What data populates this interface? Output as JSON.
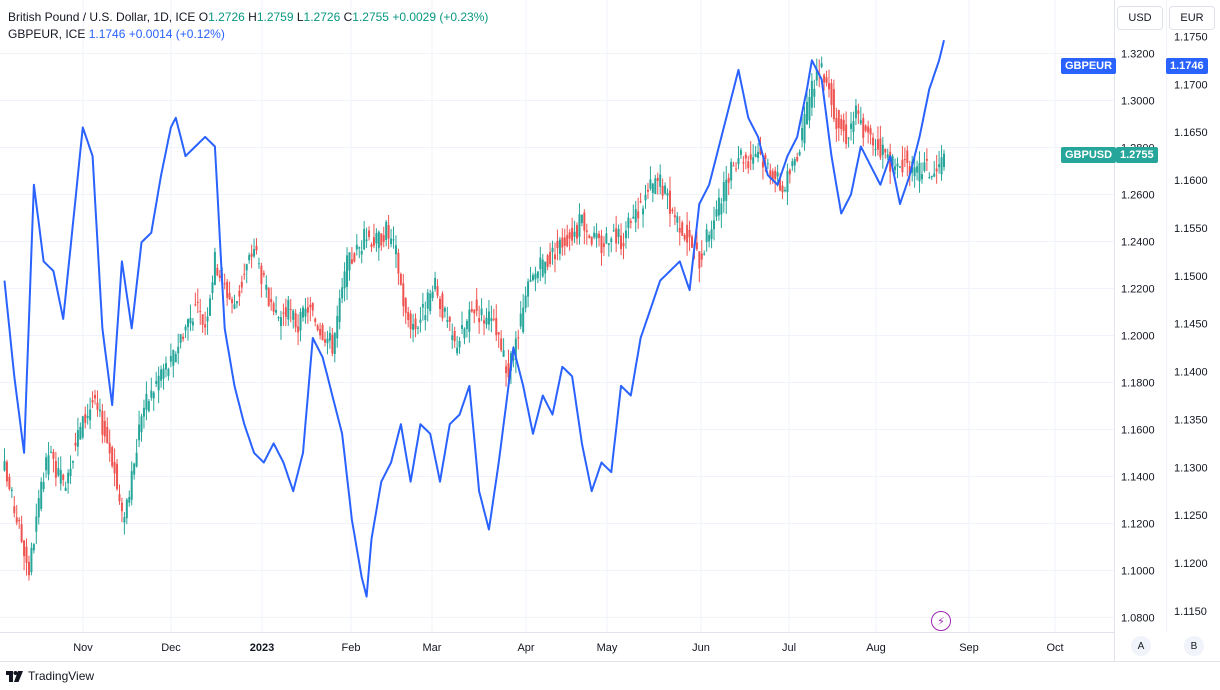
{
  "legend": {
    "main_title": "British Pound / U.S. Dollar, 1D, ICE",
    "o_label": "O",
    "o_value": "1.2726",
    "h_label": "H",
    "h_value": "1.2759",
    "l_label": "L",
    "l_value": "1.2726",
    "c_label": "C",
    "c_value": "1.2755",
    "change": "+0.0029 (+0.23%)",
    "compare_title": "GBPEUR, ICE",
    "compare_value": "1.1746",
    "compare_change": "+0.0014 (+0.12%)"
  },
  "buttons": {
    "usd": "USD",
    "eur": "EUR",
    "scale_a": "A",
    "scale_b": "B"
  },
  "badges": {
    "gbpeur_name": "GBPEUR",
    "gbpeur_value": "1.1746",
    "gbpusd_name": "GBPUSD",
    "gbpusd_value": "1.2755"
  },
  "footer": {
    "brand": "TradingView"
  },
  "colors": {
    "up": "#26a69a",
    "down": "#ef5350",
    "line": "#2962ff",
    "grid": "#f0f3fa"
  },
  "chart_data": {
    "type": "line",
    "title": "British Pound / U.S. Dollar, 1D, ICE",
    "x_labels": [
      "Nov",
      "Dec",
      "2023",
      "Feb",
      "Mar",
      "Apr",
      "May",
      "Jun",
      "Jul",
      "Aug",
      "Sep",
      "Oct"
    ],
    "y_left_ticks": [
      "1.3200",
      "1.3000",
      "1.2800",
      "1.2600",
      "1.2400",
      "1.2200",
      "1.2000",
      "1.1800",
      "1.1600",
      "1.1400",
      "1.1200",
      "1.1000",
      "1.0800"
    ],
    "y_right_ticks": [
      "1.1750",
      "1.1700",
      "1.1650",
      "1.1600",
      "1.1550",
      "1.1500",
      "1.1450",
      "1.1400",
      "1.1350",
      "1.1300",
      "1.1250",
      "1.1200",
      "1.1150"
    ],
    "ylim_usd": [
      1.0738,
      1.3428
    ],
    "ylim_eur": [
      1.1128,
      1.1788
    ],
    "series": [
      {
        "name": "GBPUSD",
        "style": "candlestick",
        "axis": "usd",
        "anchors": [
          [
            0,
            1.143
          ],
          [
            6,
            1.118
          ],
          [
            10,
            1.1,
            1.095
          ],
          [
            14,
            1.128
          ],
          [
            18,
            1.15
          ],
          [
            24,
            1.136
          ],
          [
            30,
            1.158
          ],
          [
            36,
            1.172
          ],
          [
            40,
            1.162
          ],
          [
            44,
            1.148
          ],
          [
            48,
            1.122
          ],
          [
            52,
            1.138
          ],
          [
            56,
            1.168
          ],
          [
            60,
            1.175
          ],
          [
            64,
            1.185
          ],
          [
            68,
            1.188
          ],
          [
            72,
            1.2
          ],
          [
            78,
            1.212
          ],
          [
            82,
            1.205
          ],
          [
            86,
            1.232
          ],
          [
            90,
            1.221
          ],
          [
            94,
            1.212
          ],
          [
            98,
            1.226
          ],
          [
            102,
            1.238
          ],
          [
            106,
            1.222
          ],
          [
            110,
            1.206
          ],
          [
            116,
            1.211
          ],
          [
            120,
            1.204
          ],
          [
            124,
            1.212
          ],
          [
            128,
            1.205
          ],
          [
            134,
            1.196
          ],
          [
            140,
            1.23
          ],
          [
            144,
            1.236
          ],
          [
            148,
            1.243
          ],
          [
            152,
            1.24
          ],
          [
            156,
            1.245
          ],
          [
            160,
            1.235
          ],
          [
            164,
            1.208
          ],
          [
            168,
            1.204
          ],
          [
            172,
            1.212
          ],
          [
            176,
            1.22
          ],
          [
            180,
            1.208
          ],
          [
            184,
            1.196
          ],
          [
            188,
            1.203
          ],
          [
            192,
            1.212
          ],
          [
            196,
            1.208
          ],
          [
            200,
            1.204
          ],
          [
            204,
            1.19
          ],
          [
            206,
            1.184
          ],
          [
            210,
            1.2
          ],
          [
            214,
            1.22
          ],
          [
            218,
            1.228
          ],
          [
            222,
            1.232
          ],
          [
            226,
            1.238
          ],
          [
            230,
            1.242
          ],
          [
            234,
            1.245
          ],
          [
            236,
            1.25
          ],
          [
            240,
            1.242
          ],
          [
            244,
            1.238
          ],
          [
            248,
            1.245
          ],
          [
            252,
            1.24
          ],
          [
            256,
            1.248
          ],
          [
            260,
            1.255
          ],
          [
            264,
            1.263
          ],
          [
            268,
            1.266
          ],
          [
            272,
            1.255
          ],
          [
            276,
            1.248
          ],
          [
            280,
            1.24
          ],
          [
            284,
            1.232
          ],
          [
            288,
            1.245
          ],
          [
            292,
            1.255
          ],
          [
            296,
            1.267
          ],
          [
            300,
            1.278
          ],
          [
            304,
            1.275
          ],
          [
            308,
            1.28
          ],
          [
            310,
            1.275
          ],
          [
            314,
            1.27
          ],
          [
            318,
            1.262
          ],
          [
            322,
            1.272
          ],
          [
            326,
            1.285
          ],
          [
            330,
            1.305
          ],
          [
            332,
            1.313
          ],
          [
            336,
            1.31
          ],
          [
            340,
            1.292
          ],
          [
            344,
            1.285
          ],
          [
            348,
            1.295
          ],
          [
            352,
            1.285
          ],
          [
            356,
            1.282
          ],
          [
            360,
            1.278
          ],
          [
            364,
            1.27
          ],
          [
            368,
            1.275
          ],
          [
            372,
            1.268
          ],
          [
            376,
            1.272
          ],
          [
            380,
            1.268
          ],
          [
            382,
            1.272
          ],
          [
            384,
            1.2755
          ]
        ]
      },
      {
        "name": "GBPEUR",
        "style": "line",
        "axis": "eur",
        "anchors": [
          [
            0,
            1.1495
          ],
          [
            4,
            1.1395
          ],
          [
            8,
            1.1315
          ],
          [
            12,
            1.1595
          ],
          [
            16,
            1.1515
          ],
          [
            20,
            1.1505
          ],
          [
            24,
            1.1455
          ],
          [
            28,
            1.1555
          ],
          [
            32,
            1.1655
          ],
          [
            36,
            1.1625
          ],
          [
            40,
            1.1445
          ],
          [
            44,
            1.1365
          ],
          [
            48,
            1.1515
          ],
          [
            52,
            1.1445
          ],
          [
            56,
            1.1535
          ],
          [
            60,
            1.1545
          ],
          [
            64,
            1.1605
          ],
          [
            68,
            1.1655
          ],
          [
            70,
            1.1665
          ],
          [
            74,
            1.1625
          ],
          [
            78,
            1.1635
          ],
          [
            82,
            1.1645
          ],
          [
            86,
            1.1635
          ],
          [
            90,
            1.1445
          ],
          [
            94,
            1.1385
          ],
          [
            98,
            1.1345
          ],
          [
            102,
            1.1315
          ],
          [
            106,
            1.1305
          ],
          [
            110,
            1.1325
          ],
          [
            114,
            1.1305
          ],
          [
            118,
            1.1275
          ],
          [
            122,
            1.1315
          ],
          [
            126,
            1.1435
          ],
          [
            130,
            1.1415
          ],
          [
            134,
            1.1375
          ],
          [
            138,
            1.1335
          ],
          [
            142,
            1.1245
          ],
          [
            146,
            1.1185
          ],
          [
            148,
            1.1165
          ],
          [
            150,
            1.1225
          ],
          [
            154,
            1.1285
          ],
          [
            158,
            1.1305
          ],
          [
            162,
            1.1345
          ],
          [
            166,
            1.1285
          ],
          [
            170,
            1.1345
          ],
          [
            174,
            1.1335
          ],
          [
            178,
            1.1285
          ],
          [
            182,
            1.1345
          ],
          [
            186,
            1.1355
          ],
          [
            190,
            1.1385
          ],
          [
            194,
            1.1275
          ],
          [
            198,
            1.1235
          ],
          [
            202,
            1.1305
          ],
          [
            206,
            1.1385
          ],
          [
            208,
            1.1425
          ],
          [
            212,
            1.1385
          ],
          [
            216,
            1.1335
          ],
          [
            220,
            1.1375
          ],
          [
            224,
            1.1355
          ],
          [
            228,
            1.1405
          ],
          [
            232,
            1.1395
          ],
          [
            236,
            1.1325
          ],
          [
            240,
            1.1275
          ],
          [
            244,
            1.1305
          ],
          [
            248,
            1.1295
          ],
          [
            252,
            1.1385
          ],
          [
            256,
            1.1375
          ],
          [
            260,
            1.1435
          ],
          [
            264,
            1.1465
          ],
          [
            268,
            1.1495
          ],
          [
            272,
            1.1505
          ],
          [
            276,
            1.1515
          ],
          [
            280,
            1.1485
          ],
          [
            284,
            1.1575
          ],
          [
            288,
            1.1595
          ],
          [
            292,
            1.1635
          ],
          [
            296,
            1.1675
          ],
          [
            300,
            1.1715
          ],
          [
            304,
            1.1665
          ],
          [
            308,
            1.1645
          ],
          [
            312,
            1.1605
          ],
          [
            316,
            1.1595
          ],
          [
            320,
            1.1625
          ],
          [
            324,
            1.1645
          ],
          [
            328,
            1.1695
          ],
          [
            330,
            1.1725
          ],
          [
            334,
            1.1705
          ],
          [
            338,
            1.1625
          ],
          [
            342,
            1.1565
          ],
          [
            346,
            1.1585
          ],
          [
            350,
            1.1635
          ],
          [
            354,
            1.1615
          ],
          [
            358,
            1.1595
          ],
          [
            362,
            1.1625
          ],
          [
            366,
            1.1575
          ],
          [
            370,
            1.1605
          ],
          [
            374,
            1.1645
          ],
          [
            378,
            1.1695
          ],
          [
            382,
            1.1725
          ],
          [
            384,
            1.1746
          ]
        ]
      }
    ]
  }
}
